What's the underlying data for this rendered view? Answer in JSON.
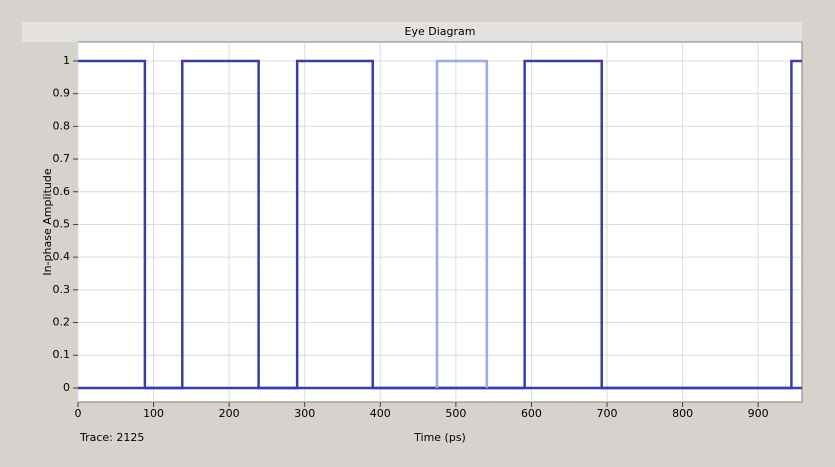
{
  "chart_data": {
    "type": "line",
    "title": "Eye Diagram",
    "x_label": "Time (ps)",
    "y_label": "In-phase Amplitude",
    "annotations": [
      "Trace: 2125"
    ],
    "xlim": [
      0,
      958
    ],
    "ylim": [
      -0.043,
      1.058
    ],
    "xticks": [
      0,
      100,
      200,
      300,
      400,
      500,
      600,
      700,
      800,
      900
    ],
    "yticks": [
      0,
      0.1,
      0.2,
      0.3,
      0.4,
      0.5,
      0.6,
      0.7,
      0.8,
      0.9,
      1
    ],
    "grid": true,
    "series": [
      {
        "color": "#3c3ca8",
        "x": [
          0,
          88.5,
          88.5,
          138,
          138,
          239,
          239,
          290,
          290,
          390,
          390,
          591,
          591,
          693,
          693,
          944,
          944,
          958
        ],
        "values": [
          1,
          1,
          0,
          0,
          1,
          1,
          0,
          0,
          1,
          1,
          0,
          0,
          1,
          1,
          0,
          0,
          1,
          1
        ]
      },
      {
        "color": "#3c3ca8",
        "x": [
          0,
          958
        ],
        "values": [
          0,
          0
        ]
      },
      {
        "color": "#9ea8e2",
        "x": [
          475,
          475,
          541,
          541
        ],
        "values": [
          0,
          1,
          1,
          0
        ]
      }
    ]
  }
}
